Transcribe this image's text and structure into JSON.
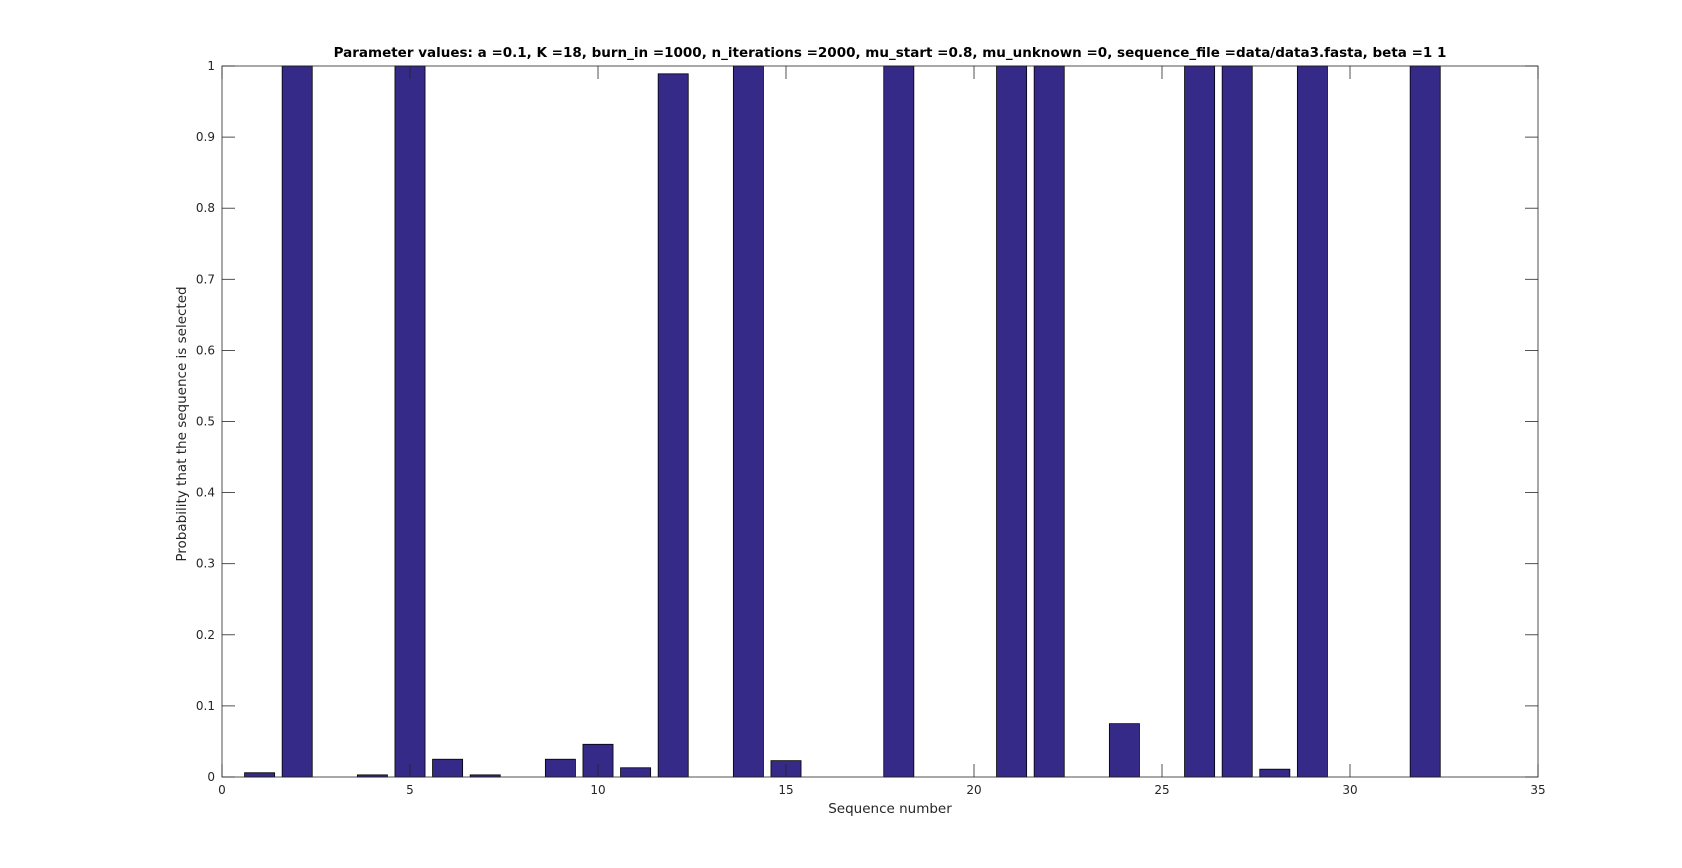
{
  "chart_data": {
    "type": "bar",
    "title": "Parameter values: a =0.1, K =18, burn_in =1000, n_iterations =2000, mu_start =0.8, mu_unknown =0, sequence_file =data/data3.fasta, beta =1  1",
    "xlabel": "Sequence number",
    "ylabel": "Probability that the sequence is selected",
    "xlim": [
      0,
      35
    ],
    "ylim": [
      0,
      1
    ],
    "x_ticks": [
      "0",
      "5",
      "10",
      "15",
      "20",
      "25",
      "30",
      "35"
    ],
    "y_ticks": [
      "0",
      "0.1",
      "0.2",
      "0.3",
      "0.4",
      "0.5",
      "0.6",
      "0.7",
      "0.8",
      "0.9",
      "1"
    ],
    "x": [
      1,
      2,
      3,
      4,
      5,
      6,
      7,
      8,
      9,
      10,
      11,
      12,
      13,
      14,
      15,
      16,
      17,
      18,
      19,
      20,
      21,
      22,
      23,
      24,
      25,
      26,
      27,
      28,
      29,
      30,
      31,
      32,
      33,
      34
    ],
    "values": [
      0.006,
      1.0,
      0,
      0.003,
      1.0,
      0.025,
      0.003,
      0,
      0.025,
      0.046,
      0.013,
      0.989,
      0,
      1.0,
      0.023,
      0,
      0,
      1.0,
      0,
      0,
      1.0,
      1.0,
      0,
      0.075,
      0,
      1.0,
      1.0,
      0.011,
      1.0,
      0,
      0,
      1.0,
      0,
      0
    ],
    "bar_color": "#352a87",
    "edge_color": "#000000",
    "grid": false,
    "legend": "none"
  }
}
